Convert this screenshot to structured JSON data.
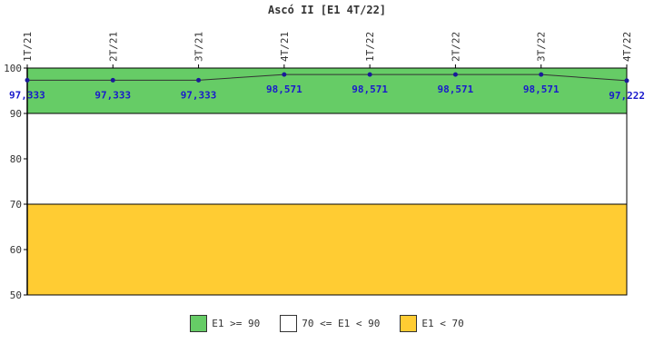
{
  "chart_data": {
    "type": "line",
    "title": "Ascó II [E1 4T/22]",
    "categories": [
      "1T/21",
      "2T/21",
      "3T/21",
      "4T/21",
      "1T/22",
      "2T/22",
      "3T/22",
      "4T/22"
    ],
    "series": [
      {
        "values": [
          97.333,
          97.333,
          97.333,
          98.571,
          98.571,
          98.571,
          98.571,
          97.222
        ]
      }
    ],
    "data_labels": [
      "97,333",
      "97,333",
      "97,333",
      "98,571",
      "98,571",
      "98,571",
      "98,571",
      "97,222"
    ],
    "y_ticks": [
      "50",
      "60",
      "70",
      "80",
      "90",
      "100"
    ],
    "ylim": [
      50,
      100
    ],
    "grid": false,
    "legend_position": "bottom",
    "bands": [
      {
        "from": 90,
        "to": 100,
        "color": "#66cc66",
        "label": "E1 >= 90"
      },
      {
        "from": 70,
        "to": 90,
        "color": "#ffffff",
        "label": "70 <= E1 < 90"
      },
      {
        "from": 50,
        "to": 70,
        "color": "#ffcc33",
        "label": "E1 < 70"
      }
    ],
    "line_color": "#333333",
    "marker_color": "#1a1a99"
  }
}
